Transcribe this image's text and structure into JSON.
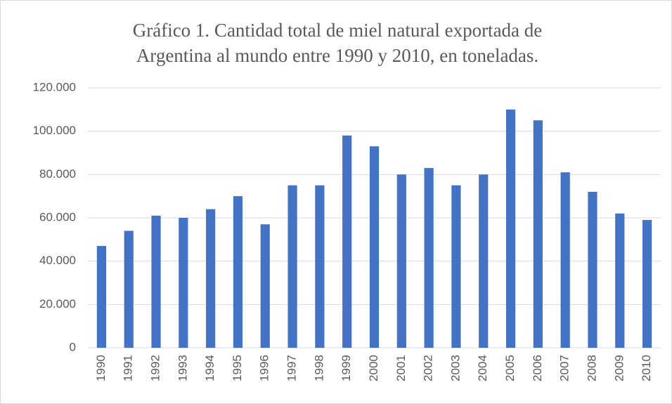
{
  "chart_data": {
    "type": "bar",
    "title": [
      "Gráfico 1. Cantidad total de miel natural exportada de",
      "Argentina al mundo entre 1990 y 2010, en toneladas."
    ],
    "categories": [
      "1990",
      "1991",
      "1992",
      "1993",
      "1994",
      "1995",
      "1996",
      "1997",
      "1998",
      "1999",
      "2000",
      "2001",
      "2002",
      "2003",
      "2004",
      "2005",
      "2006",
      "2007",
      "2008",
      "2009",
      "2010"
    ],
    "values": [
      47000,
      54000,
      61000,
      60000,
      64000,
      70000,
      57000,
      75000,
      75000,
      98000,
      93000,
      80000,
      83000,
      75000,
      80000,
      110000,
      105000,
      81000,
      72000,
      62000,
      59000
    ],
    "color": "#4472c4",
    "ylim": [
      0,
      120000
    ],
    "yticks": [
      0,
      {
        "value": 20000,
        "label": "20.000"
      },
      {
        "value": 40000,
        "label": "40.000"
      },
      {
        "value": 60000,
        "label": "60.000"
      },
      {
        "value": 80000,
        "label": "80.000"
      },
      {
        "value": 100000,
        "label": "100.000"
      },
      {
        "value": 120000,
        "label": "120.000"
      }
    ],
    "grid": true
  }
}
